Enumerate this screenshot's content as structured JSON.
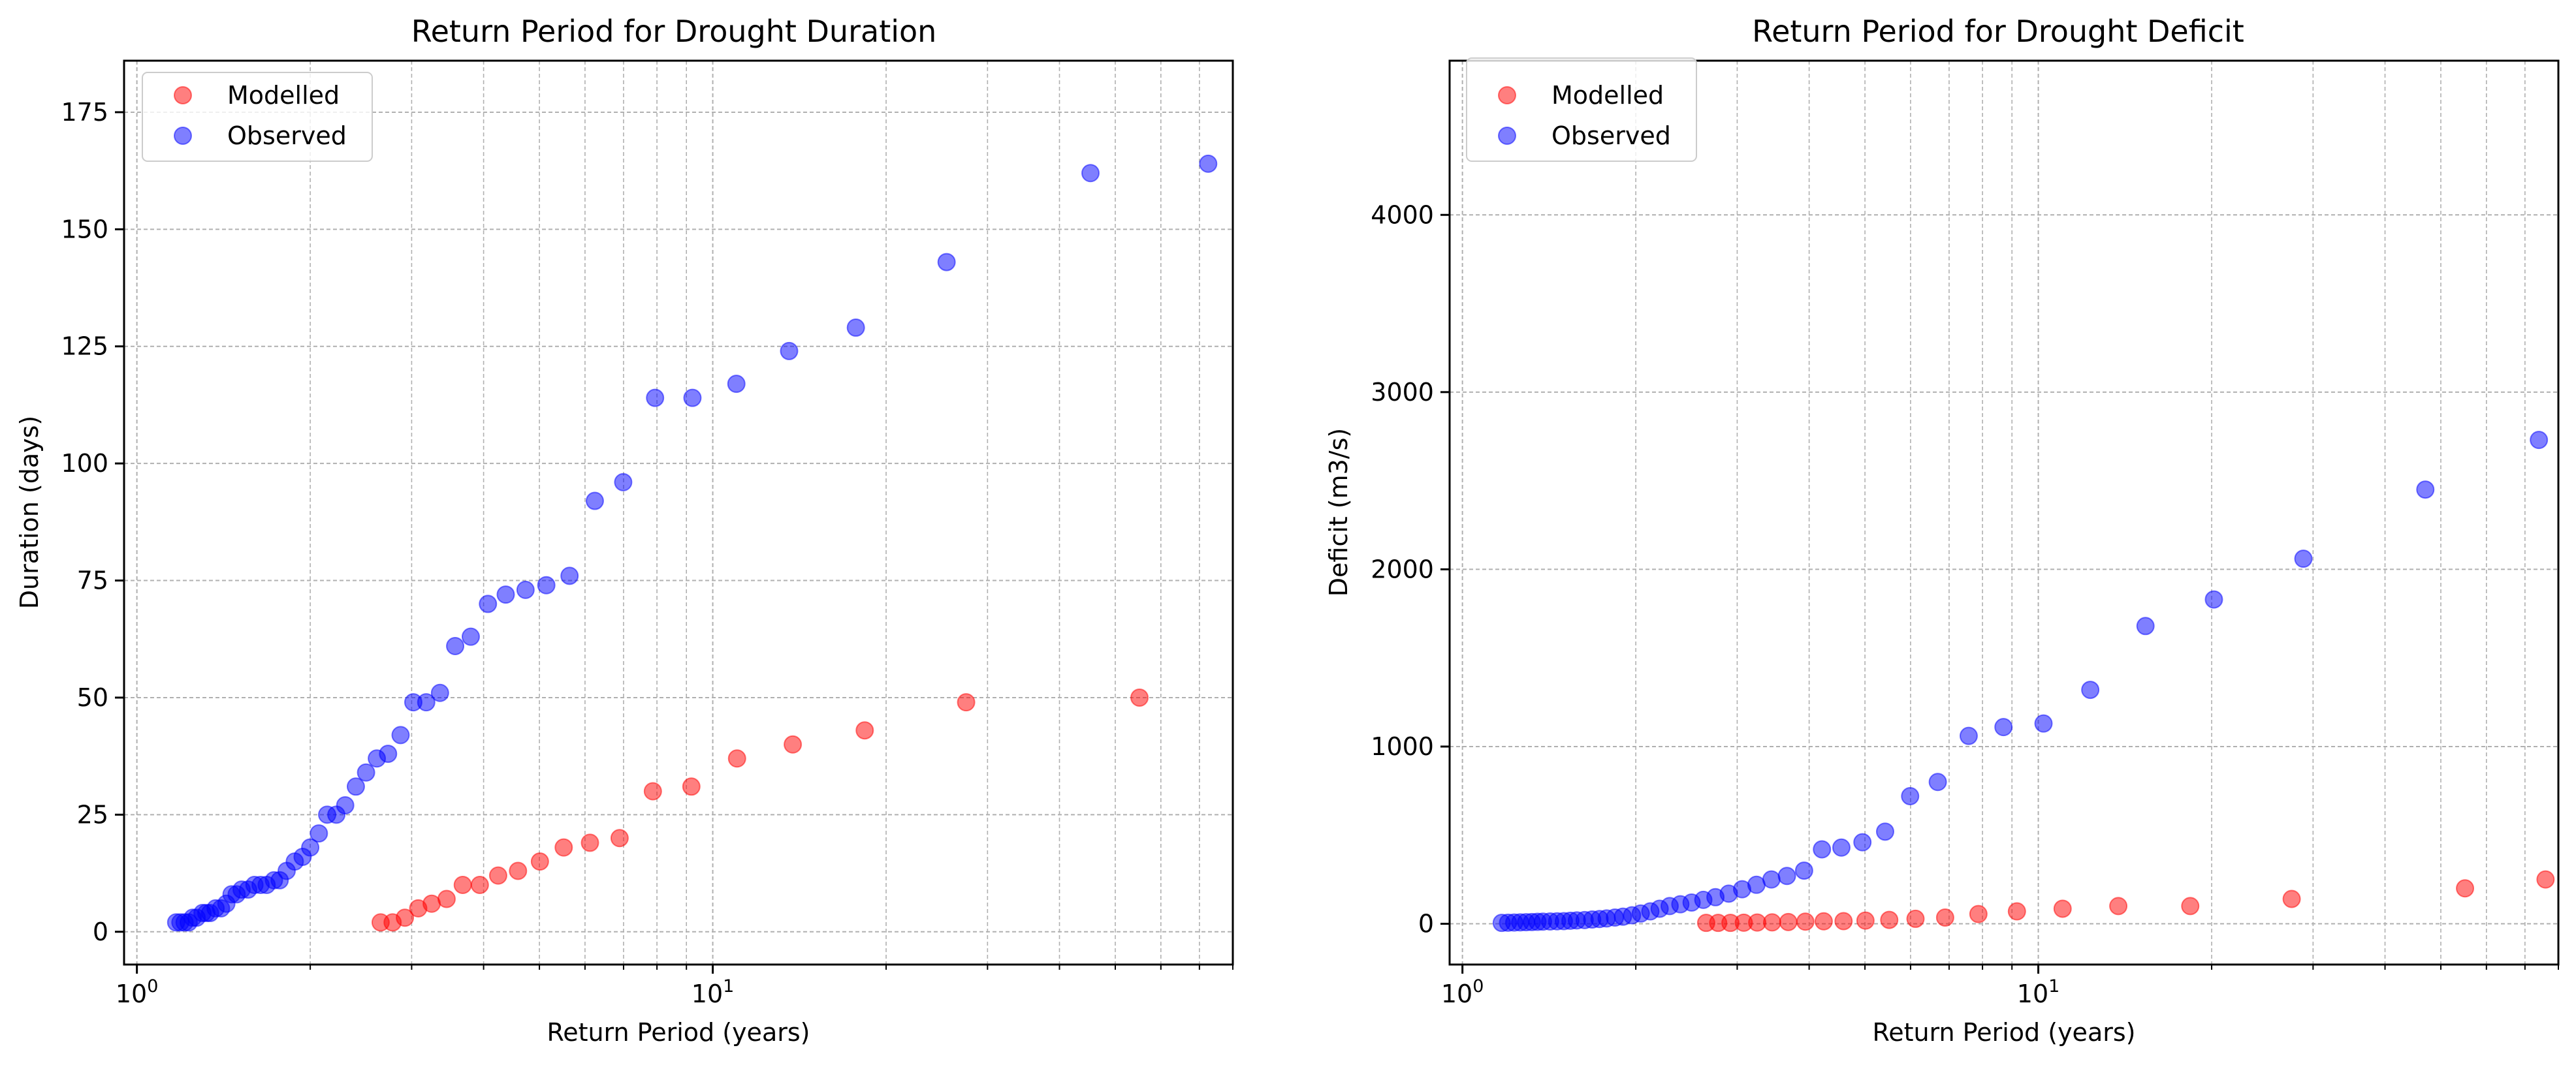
{
  "chart_data": [
    {
      "type": "scatter",
      "title": "Return Period for Drought Duration",
      "xlabel": "Return Period (years)",
      "ylabel": "Duration (days)",
      "xscale": "log",
      "xlim": [
        0.95,
        80
      ],
      "ylim": [
        -7,
        186
      ],
      "xticks": [
        {
          "base": "10",
          "exp": "0",
          "value": 1
        },
        {
          "base": "10",
          "exp": "1",
          "value": 10
        }
      ],
      "yticks": [
        {
          "value": 0,
          "label": "0"
        },
        {
          "value": 25,
          "label": "25"
        },
        {
          "value": 50,
          "label": "50"
        },
        {
          "value": 75,
          "label": "75"
        },
        {
          "value": 100,
          "label": "100"
        },
        {
          "value": 125,
          "label": "125"
        },
        {
          "value": 150,
          "label": "150"
        },
        {
          "value": 175,
          "label": "175"
        }
      ],
      "grid": true,
      "legend_position": "top-left",
      "series": [
        {
          "name": "Modelled",
          "color": "#ff0000",
          "x": [
            2.65,
            2.78,
            2.92,
            3.08,
            3.25,
            3.45,
            3.68,
            3.94,
            4.24,
            4.59,
            5.01,
            5.51,
            6.12,
            6.89,
            7.87,
            9.18,
            11.02,
            13.77,
            18.36,
            27.54,
            55.08
          ],
          "y": [
            2,
            2,
            3,
            5,
            6,
            7,
            10,
            10,
            12,
            13,
            15,
            18,
            19,
            20,
            30,
            31,
            37,
            40,
            43,
            49,
            50
          ]
        },
        {
          "name": "Observed",
          "color": "#0000ff",
          "x": [
            1.17,
            1.19,
            1.21,
            1.23,
            1.25,
            1.27,
            1.3,
            1.32,
            1.34,
            1.37,
            1.4,
            1.43,
            1.46,
            1.49,
            1.52,
            1.56,
            1.6,
            1.64,
            1.68,
            1.73,
            1.77,
            1.82,
            1.88,
            1.94,
            2.0,
            2.07,
            2.14,
            2.22,
            2.3,
            2.4,
            2.5,
            2.61,
            2.73,
            2.87,
            3.02,
            3.18,
            3.36,
            3.57,
            3.8,
            4.07,
            4.37,
            4.73,
            5.14,
            5.64,
            6.24,
            6.99,
            7.94,
            9.22,
            10.99,
            13.57,
            17.72,
            25.47,
            45.28,
            72.5
          ],
          "y": [
            2,
            2,
            2,
            2,
            3,
            3,
            4,
            4,
            4,
            5,
            5,
            6,
            8,
            8,
            9,
            9,
            10,
            10,
            10,
            11,
            11,
            13,
            15,
            16,
            18,
            21,
            25,
            25,
            27,
            31,
            34,
            37,
            38,
            42,
            49,
            49,
            51,
            61,
            63,
            70,
            72,
            73,
            74,
            76,
            92,
            96,
            114,
            114,
            117,
            124,
            129,
            143,
            162,
            164
          ]
        }
      ]
    },
    {
      "type": "scatter",
      "title": "Return Period for Drought Deficit",
      "xlabel": "Return Period (years)",
      "ylabel": "Deficit (m3/s)",
      "xscale": "log",
      "xlim": [
        0.95,
        80
      ],
      "ylim": [
        -230,
        4870
      ],
      "xticks": [
        {
          "base": "10",
          "exp": "0",
          "value": 1
        },
        {
          "base": "10",
          "exp": "1",
          "value": 10
        }
      ],
      "yticks": [
        {
          "value": 0,
          "label": "0"
        },
        {
          "value": 1000,
          "label": "1000"
        },
        {
          "value": 2000,
          "label": "2000"
        },
        {
          "value": 3000,
          "label": "3000"
        },
        {
          "value": 4000,
          "label": "4000"
        }
      ],
      "grid": true,
      "legend_position": "top-left",
      "series": [
        {
          "name": "Modelled",
          "color": "#ff0000",
          "x": [
            2.65,
            2.78,
            2.92,
            3.08,
            3.25,
            3.45,
            3.68,
            3.94,
            4.24,
            4.59,
            5.01,
            5.51,
            6.12,
            6.89,
            7.87,
            9.18,
            11.02,
            13.77,
            18.36,
            27.54,
            55.08,
            76.0
          ],
          "y": [
            5,
            5,
            5,
            6,
            7,
            8,
            10,
            12,
            14,
            15,
            18,
            22,
            28,
            35,
            55,
            70,
            85,
            100,
            100,
            140,
            200,
            250
          ]
        },
        {
          "name": "Observed",
          "color": "#0000ff",
          "x": [
            1.17,
            1.2,
            1.23,
            1.26,
            1.29,
            1.32,
            1.35,
            1.38,
            1.42,
            1.46,
            1.5,
            1.54,
            1.58,
            1.63,
            1.68,
            1.73,
            1.78,
            1.84,
            1.9,
            1.97,
            2.04,
            2.12,
            2.2,
            2.29,
            2.39,
            2.5,
            2.62,
            2.75,
            2.9,
            3.06,
            3.24,
            3.44,
            3.66,
            3.92,
            4.21,
            4.55,
            4.95,
            5.42,
            5.99,
            6.69,
            7.57,
            8.7,
            10.21,
            12.31,
            15.35,
            20.18,
            28.86,
            47.0,
            74.0
          ],
          "y": [
            5,
            6,
            7,
            8,
            9,
            10,
            11,
            12,
            13,
            14,
            15,
            17,
            19,
            21,
            24,
            27,
            30,
            35,
            40,
            48,
            58,
            70,
            85,
            100,
            110,
            120,
            135,
            150,
            170,
            195,
            220,
            250,
            270,
            300,
            420,
            430,
            460,
            520,
            720,
            800,
            1060,
            1110,
            1130,
            1320,
            1680,
            1830,
            2060,
            2450,
            2730
          ]
        }
      ]
    }
  ]
}
